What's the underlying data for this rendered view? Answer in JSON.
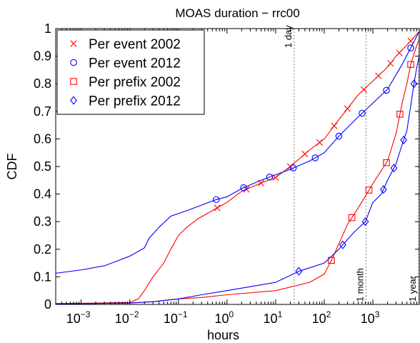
{
  "chart_data": {
    "type": "line",
    "title": "MOAS duration − rrc00",
    "xlabel": "hours",
    "ylabel": "CDF",
    "x_scale": "log",
    "xlim": [
      0.0003,
      9000
    ],
    "ylim": [
      0,
      1
    ],
    "grid": false,
    "legend_position": "top-left",
    "x_ticks": [
      {
        "value": 0.001,
        "base": "10",
        "exp": "−3"
      },
      {
        "value": 0.01,
        "base": "10",
        "exp": "−2"
      },
      {
        "value": 0.1,
        "base": "10",
        "exp": "−1"
      },
      {
        "value": 1,
        "base": "10",
        "exp": "0"
      },
      {
        "value": 10,
        "base": "10",
        "exp": "1"
      },
      {
        "value": 100,
        "base": "10",
        "exp": "2"
      },
      {
        "value": 1000,
        "base": "10",
        "exp": "3"
      }
    ],
    "y_ticks": [
      {
        "value": 0,
        "label": "0"
      },
      {
        "value": 0.1,
        "label": "0.1"
      },
      {
        "value": 0.2,
        "label": "0.2"
      },
      {
        "value": 0.3,
        "label": "0.3"
      },
      {
        "value": 0.4,
        "label": "0.4"
      },
      {
        "value": 0.5,
        "label": "0.5"
      },
      {
        "value": 0.6,
        "label": "0.6"
      },
      {
        "value": 0.7,
        "label": "0.7"
      },
      {
        "value": 0.8,
        "label": "0.8"
      },
      {
        "value": 0.9,
        "label": "0.9"
      },
      {
        "value": 1,
        "label": "1"
      }
    ],
    "annotations": [
      {
        "text": "1 day",
        "x": 24,
        "label_y": 0.93
      },
      {
        "text": "1 month",
        "x": 720,
        "label_y": 0.01
      },
      {
        "text": "1 year",
        "x": 8760,
        "label_y": 0.01
      }
    ],
    "series": [
      {
        "name": "Per event 2002",
        "color": "#ff0000",
        "marker": "x",
        "points": [
          [
            0.0003,
            0.003
          ],
          [
            0.001,
            0.004
          ],
          [
            0.005,
            0.006
          ],
          [
            0.01,
            0.007
          ],
          [
            0.015,
            0.02
          ],
          [
            0.02,
            0.05
          ],
          [
            0.03,
            0.1
          ],
          [
            0.05,
            0.15
          ],
          [
            0.07,
            0.2
          ],
          [
            0.1,
            0.25
          ],
          [
            0.15,
            0.28
          ],
          [
            0.25,
            0.31
          ],
          [
            0.5,
            0.34
          ],
          [
            1,
            0.37
          ],
          [
            2,
            0.41
          ],
          [
            5,
            0.44
          ],
          [
            10,
            0.46
          ],
          [
            20,
            0.5
          ],
          [
            50,
            0.56
          ],
          [
            100,
            0.6
          ],
          [
            200,
            0.67
          ],
          [
            500,
            0.76
          ],
          [
            1000,
            0.81
          ],
          [
            2000,
            0.86
          ],
          [
            3000,
            0.9
          ],
          [
            5000,
            0.94
          ],
          [
            9000,
            0.99
          ]
        ],
        "markers_x": [
          0.63,
          2.5,
          5,
          10,
          20,
          40,
          80,
          160,
          300,
          650,
          1300,
          2300,
          3500,
          6000
        ]
      },
      {
        "name": "Per event 2012",
        "color": "#0000ff",
        "marker": "o",
        "points": [
          [
            0.0003,
            0.113
          ],
          [
            0.001,
            0.125
          ],
          [
            0.003,
            0.14
          ],
          [
            0.006,
            0.16
          ],
          [
            0.01,
            0.175
          ],
          [
            0.02,
            0.205
          ],
          [
            0.025,
            0.24
          ],
          [
            0.04,
            0.28
          ],
          [
            0.07,
            0.32
          ],
          [
            0.15,
            0.34
          ],
          [
            0.3,
            0.36
          ],
          [
            0.6,
            0.38
          ],
          [
            1,
            0.39
          ],
          [
            2,
            0.42
          ],
          [
            5,
            0.45
          ],
          [
            10,
            0.47
          ],
          [
            20,
            0.49
          ],
          [
            50,
            0.52
          ],
          [
            100,
            0.55
          ],
          [
            200,
            0.61
          ],
          [
            500,
            0.68
          ],
          [
            1000,
            0.73
          ],
          [
            2000,
            0.78
          ],
          [
            4000,
            0.87
          ],
          [
            6000,
            0.93
          ],
          [
            9000,
            0.99
          ]
        ],
        "markers_x": [
          0.6,
          2.2,
          7.5,
          23,
          65,
          200,
          600,
          1900,
          6000
        ]
      },
      {
        "name": "Per prefix 2002",
        "color": "#ff0000",
        "marker": "s",
        "points": [
          [
            0.0003,
            0.002
          ],
          [
            0.01,
            0.005
          ],
          [
            0.03,
            0.01
          ],
          [
            0.1,
            0.02
          ],
          [
            0.3,
            0.025
          ],
          [
            1,
            0.035
          ],
          [
            10,
            0.05
          ],
          [
            50,
            0.08
          ],
          [
            100,
            0.11
          ],
          [
            150,
            0.17
          ],
          [
            200,
            0.22
          ],
          [
            300,
            0.29
          ],
          [
            500,
            0.35
          ],
          [
            800,
            0.41
          ],
          [
            1200,
            0.46
          ],
          [
            2000,
            0.52
          ],
          [
            3000,
            0.62
          ],
          [
            4000,
            0.73
          ],
          [
            5000,
            0.8
          ],
          [
            6000,
            0.87
          ],
          [
            8000,
            0.94
          ],
          [
            9000,
            0.96
          ]
        ],
        "markers_x": [
          140,
          370,
          830,
          1900,
          3600,
          6000
        ]
      },
      {
        "name": "Per prefix 2012",
        "color": "#0000ff",
        "marker": "d",
        "points": [
          [
            0.0003,
            0.002
          ],
          [
            0.01,
            0.005
          ],
          [
            0.03,
            0.01
          ],
          [
            0.1,
            0.02
          ],
          [
            0.3,
            0.035
          ],
          [
            1,
            0.05
          ],
          [
            10,
            0.08
          ],
          [
            30,
            0.12
          ],
          [
            100,
            0.15
          ],
          [
            200,
            0.2
          ],
          [
            400,
            0.26
          ],
          [
            700,
            0.3
          ],
          [
            1000,
            0.37
          ],
          [
            1500,
            0.4
          ],
          [
            2000,
            0.45
          ],
          [
            3000,
            0.51
          ],
          [
            4000,
            0.58
          ],
          [
            5000,
            0.63
          ],
          [
            6000,
            0.72
          ],
          [
            7000,
            0.8
          ],
          [
            8000,
            0.86
          ],
          [
            9000,
            0.9
          ]
        ],
        "markers_x": [
          30,
          240,
          700,
          1650,
          2700,
          4300,
          7000
        ]
      }
    ]
  }
}
